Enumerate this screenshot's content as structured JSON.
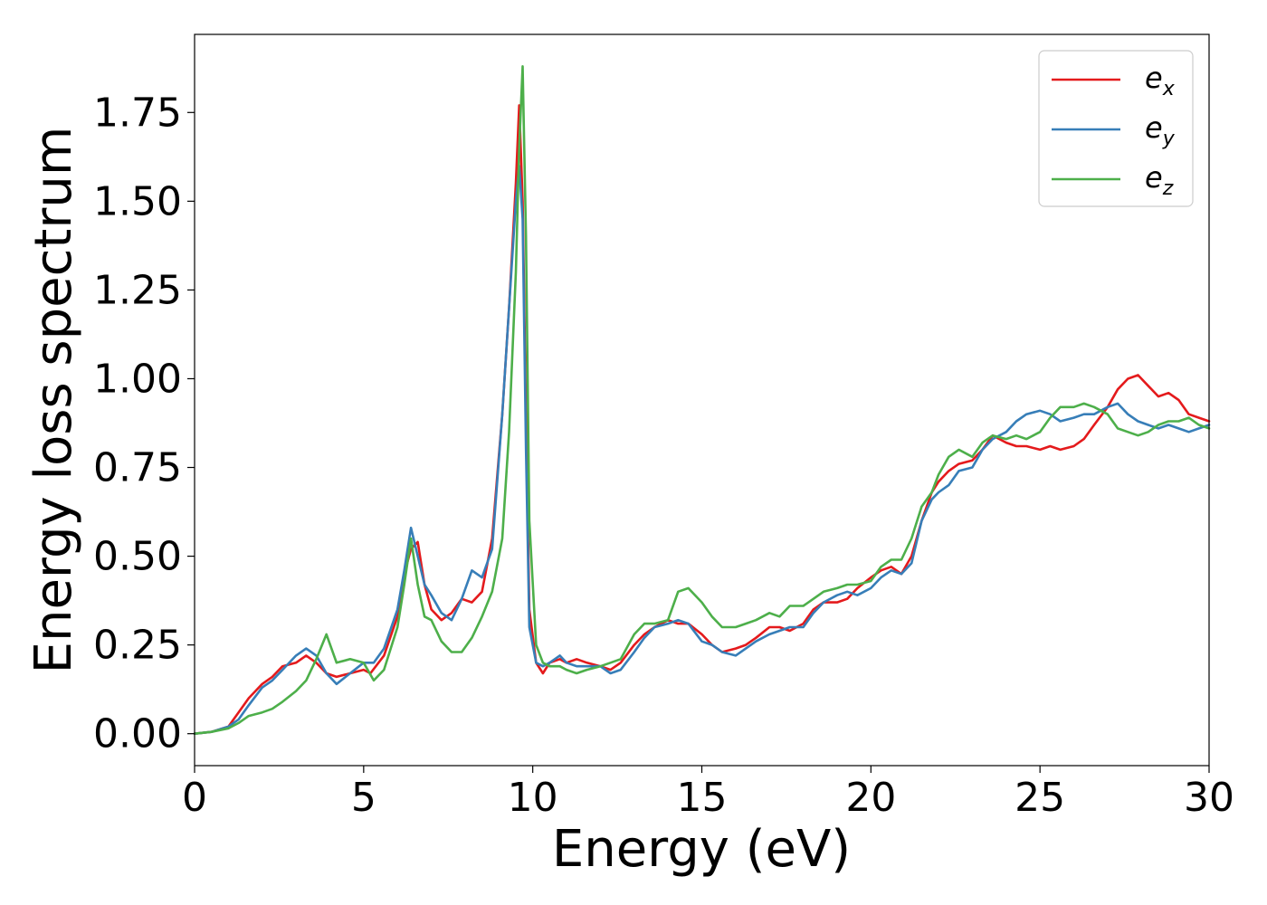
{
  "chart_data": {
    "type": "line",
    "xlabel": "Energy (eV)",
    "ylabel": "Energy loss spectrum",
    "xlim": [
      0,
      30
    ],
    "ylim": [
      -0.09,
      1.97
    ],
    "xticks": [
      0,
      5,
      10,
      15,
      20,
      25,
      30
    ],
    "yticks": [
      0.0,
      0.25,
      0.5,
      0.75,
      1.0,
      1.25,
      1.5,
      1.75
    ],
    "xtick_labels": [
      "0",
      "5",
      "10",
      "15",
      "20",
      "25",
      "30"
    ],
    "ytick_labels": [
      "0.00",
      "0.25",
      "0.50",
      "0.75",
      "1.00",
      "1.25",
      "1.50",
      "1.75"
    ],
    "grid": false,
    "legend_position": "top-right",
    "series": [
      {
        "name": "e",
        "subscript": "x",
        "color": "#e41a1c",
        "x": [
          0,
          0.5,
          1,
          1.3,
          1.6,
          2,
          2.3,
          2.6,
          3,
          3.3,
          3.6,
          3.9,
          4.2,
          4.6,
          5,
          5.2,
          5.6,
          6,
          6.2,
          6.4,
          6.6,
          6.8,
          7,
          7.3,
          7.6,
          7.9,
          8.2,
          8.5,
          8.8,
          9.1,
          9.3,
          9.5,
          9.6,
          9.7,
          9.8,
          9.9,
          10.1,
          10.3,
          10.5,
          10.8,
          11,
          11.3,
          11.6,
          12,
          12.3,
          12.6,
          13,
          13.3,
          13.6,
          14,
          14.3,
          14.6,
          15,
          15.3,
          15.6,
          16,
          16.3,
          16.6,
          17,
          17.3,
          17.6,
          18,
          18.3,
          18.6,
          19,
          19.3,
          19.6,
          20,
          20.3,
          20.6,
          20.9,
          21.2,
          21.5,
          21.8,
          22,
          22.3,
          22.6,
          23,
          23.3,
          23.6,
          24,
          24.3,
          24.6,
          25,
          25.3,
          25.6,
          26,
          26.3,
          26.6,
          27,
          27.3,
          27.6,
          27.9,
          28.2,
          28.5,
          28.8,
          29.1,
          29.4,
          29.7,
          30
        ],
        "values": [
          0,
          0.005,
          0.02,
          0.06,
          0.1,
          0.14,
          0.16,
          0.19,
          0.2,
          0.22,
          0.2,
          0.17,
          0.16,
          0.17,
          0.18,
          0.17,
          0.22,
          0.33,
          0.45,
          0.52,
          0.54,
          0.42,
          0.35,
          0.32,
          0.34,
          0.38,
          0.37,
          0.4,
          0.55,
          0.9,
          1.2,
          1.55,
          1.77,
          1.5,
          0.9,
          0.35,
          0.2,
          0.17,
          0.2,
          0.21,
          0.2,
          0.21,
          0.2,
          0.19,
          0.18,
          0.2,
          0.25,
          0.28,
          0.3,
          0.32,
          0.31,
          0.31,
          0.28,
          0.25,
          0.23,
          0.24,
          0.25,
          0.27,
          0.3,
          0.3,
          0.29,
          0.31,
          0.35,
          0.37,
          0.37,
          0.38,
          0.41,
          0.44,
          0.46,
          0.47,
          0.45,
          0.5,
          0.6,
          0.68,
          0.71,
          0.74,
          0.76,
          0.77,
          0.8,
          0.84,
          0.82,
          0.81,
          0.81,
          0.8,
          0.81,
          0.8,
          0.81,
          0.83,
          0.87,
          0.92,
          0.97,
          1.0,
          1.01,
          0.98,
          0.95,
          0.96,
          0.94,
          0.9,
          0.89,
          0.88
        ],
        "mark_names": [
          "Energy (eV)",
          "Energy loss spectrum"
        ]
      },
      {
        "name": "e",
        "subscript": "y",
        "color": "#377eb8",
        "x": [
          0,
          0.5,
          1,
          1.3,
          1.6,
          2,
          2.3,
          2.6,
          3,
          3.3,
          3.6,
          3.9,
          4.2,
          4.6,
          5,
          5.3,
          5.6,
          6,
          6.2,
          6.4,
          6.6,
          6.8,
          7,
          7.3,
          7.6,
          7.9,
          8.2,
          8.5,
          8.8,
          9.1,
          9.3,
          9.5,
          9.6,
          9.7,
          9.8,
          9.9,
          10.1,
          10.3,
          10.5,
          10.8,
          11,
          11.3,
          11.6,
          12,
          12.3,
          12.6,
          13,
          13.3,
          13.6,
          14,
          14.3,
          14.6,
          15,
          15.3,
          15.6,
          16,
          16.3,
          16.6,
          17,
          17.3,
          17.6,
          18,
          18.3,
          18.6,
          19,
          19.3,
          19.6,
          20,
          20.3,
          20.6,
          20.9,
          21.2,
          21.5,
          21.8,
          22,
          22.3,
          22.6,
          23,
          23.3,
          23.6,
          24,
          24.3,
          24.6,
          25,
          25.3,
          25.6,
          26,
          26.3,
          26.6,
          27,
          27.3,
          27.6,
          27.9,
          28.2,
          28.5,
          28.8,
          29.1,
          29.4,
          29.7,
          30
        ],
        "values": [
          0,
          0.005,
          0.02,
          0.04,
          0.08,
          0.13,
          0.15,
          0.18,
          0.22,
          0.24,
          0.22,
          0.17,
          0.14,
          0.17,
          0.2,
          0.2,
          0.24,
          0.35,
          0.46,
          0.58,
          0.5,
          0.42,
          0.39,
          0.34,
          0.32,
          0.38,
          0.46,
          0.44,
          0.52,
          0.9,
          1.2,
          1.5,
          1.6,
          1.45,
          0.8,
          0.3,
          0.2,
          0.19,
          0.2,
          0.22,
          0.2,
          0.19,
          0.19,
          0.19,
          0.17,
          0.18,
          0.23,
          0.27,
          0.3,
          0.31,
          0.32,
          0.31,
          0.26,
          0.25,
          0.23,
          0.22,
          0.24,
          0.26,
          0.28,
          0.29,
          0.3,
          0.3,
          0.34,
          0.37,
          0.39,
          0.4,
          0.39,
          0.41,
          0.44,
          0.46,
          0.45,
          0.48,
          0.6,
          0.66,
          0.68,
          0.7,
          0.74,
          0.75,
          0.8,
          0.83,
          0.85,
          0.88,
          0.9,
          0.91,
          0.9,
          0.88,
          0.89,
          0.9,
          0.9,
          0.92,
          0.93,
          0.9,
          0.88,
          0.87,
          0.86,
          0.87,
          0.86,
          0.85,
          0.86,
          0.87
        ],
        "mark_names": [
          "Energy (eV)",
          "Energy loss spectrum"
        ]
      },
      {
        "name": "e",
        "subscript": "z",
        "color": "#4daf4a",
        "x": [
          0,
          0.5,
          1,
          1.3,
          1.6,
          2,
          2.3,
          2.6,
          3,
          3.3,
          3.6,
          3.9,
          4.2,
          4.6,
          5,
          5.3,
          5.6,
          6,
          6.2,
          6.4,
          6.6,
          6.8,
          7,
          7.3,
          7.6,
          7.9,
          8.2,
          8.5,
          8.8,
          9.1,
          9.3,
          9.5,
          9.6,
          9.7,
          9.8,
          9.9,
          10.1,
          10.3,
          10.5,
          10.8,
          11,
          11.3,
          11.6,
          12,
          12.3,
          12.6,
          13,
          13.3,
          13.6,
          14,
          14.3,
          14.6,
          15,
          15.3,
          15.6,
          16,
          16.3,
          16.6,
          17,
          17.3,
          17.6,
          18,
          18.3,
          18.6,
          19,
          19.3,
          19.6,
          20,
          20.3,
          20.6,
          20.9,
          21.2,
          21.5,
          21.8,
          22,
          22.3,
          22.6,
          23,
          23.3,
          23.6,
          24,
          24.3,
          24.6,
          25,
          25.3,
          25.6,
          26,
          26.3,
          26.6,
          27,
          27.3,
          27.6,
          27.9,
          28.2,
          28.5,
          28.8,
          29.1,
          29.4,
          29.7,
          30
        ],
        "values": [
          0,
          0.005,
          0.015,
          0.03,
          0.05,
          0.06,
          0.07,
          0.09,
          0.12,
          0.15,
          0.21,
          0.28,
          0.2,
          0.21,
          0.2,
          0.15,
          0.18,
          0.3,
          0.42,
          0.55,
          0.42,
          0.33,
          0.32,
          0.26,
          0.23,
          0.23,
          0.27,
          0.33,
          0.4,
          0.55,
          0.85,
          1.3,
          1.65,
          1.88,
          1.4,
          0.6,
          0.25,
          0.2,
          0.19,
          0.19,
          0.18,
          0.17,
          0.18,
          0.19,
          0.2,
          0.21,
          0.28,
          0.31,
          0.31,
          0.32,
          0.4,
          0.41,
          0.37,
          0.33,
          0.3,
          0.3,
          0.31,
          0.32,
          0.34,
          0.33,
          0.36,
          0.36,
          0.38,
          0.4,
          0.41,
          0.42,
          0.42,
          0.43,
          0.47,
          0.49,
          0.49,
          0.55,
          0.64,
          0.68,
          0.73,
          0.78,
          0.8,
          0.78,
          0.82,
          0.84,
          0.83,
          0.84,
          0.83,
          0.85,
          0.89,
          0.92,
          0.92,
          0.93,
          0.92,
          0.9,
          0.86,
          0.85,
          0.84,
          0.85,
          0.87,
          0.88,
          0.88,
          0.89,
          0.87,
          0.86
        ],
        "mark_names": [
          "Energy (eV)",
          "Energy loss spectrum"
        ]
      }
    ]
  }
}
